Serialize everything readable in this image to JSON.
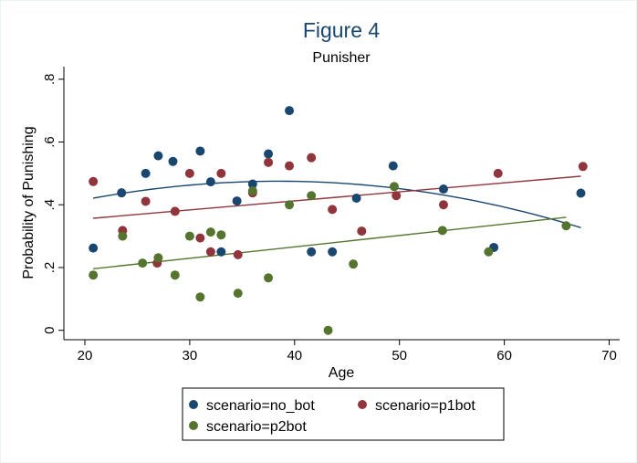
{
  "chart_data": {
    "type": "scatter",
    "title": "Figure 4",
    "subtitle": "Punisher",
    "xlabel": "Age",
    "ylabel": "Probability of Punishing",
    "xlim": [
      18,
      71
    ],
    "ylim": [
      -0.03,
      0.84
    ],
    "x_ticks": [
      20,
      30,
      40,
      50,
      60,
      70
    ],
    "x_tick_labels": [
      "20",
      "30",
      "40",
      "50",
      "60",
      "70"
    ],
    "y_ticks": [
      0,
      0.2,
      0.4,
      0.6,
      0.8
    ],
    "y_tick_labels": [
      "0",
      ".2",
      ".4",
      ".6",
      ".8"
    ],
    "grid": false,
    "legend_position": "bottom",
    "series": [
      {
        "name": "scenario=no_bot",
        "color": "#1a476f",
        "points": [
          [
            20.8,
            0.262
          ],
          [
            23.5,
            0.438
          ],
          [
            25.8,
            0.5
          ],
          [
            27,
            0.556
          ],
          [
            28.4,
            0.538
          ],
          [
            31,
            0.571
          ],
          [
            32,
            0.473
          ],
          [
            33,
            0.25
          ],
          [
            34.5,
            0.412
          ],
          [
            36,
            0.466
          ],
          [
            37.5,
            0.562
          ],
          [
            39.5,
            0.7
          ],
          [
            41.6,
            0.25
          ],
          [
            43.6,
            0.25
          ],
          [
            45.9,
            0.421
          ],
          [
            49.4,
            0.524
          ],
          [
            54.2,
            0.45
          ],
          [
            59,
            0.264
          ],
          [
            67.3,
            0.437
          ]
        ],
        "fit": {
          "kind": "quadratic",
          "from": 20.8,
          "to": 67.3,
          "y_start": 0.421,
          "y_peak_x": 38.5,
          "y_peak": 0.475,
          "y_end": 0.327
        }
      },
      {
        "name": "scenario=p1bot",
        "color": "#90353b",
        "points": [
          [
            20.8,
            0.474
          ],
          [
            23.6,
            0.318
          ],
          [
            25.8,
            0.411
          ],
          [
            26.9,
            0.214
          ],
          [
            28.6,
            0.379
          ],
          [
            30,
            0.5
          ],
          [
            31,
            0.294
          ],
          [
            32,
            0.25
          ],
          [
            33,
            0.5
          ],
          [
            34.6,
            0.241
          ],
          [
            36,
            0.438
          ],
          [
            37.5,
            0.535
          ],
          [
            39.5,
            0.524
          ],
          [
            41.6,
            0.55
          ],
          [
            43.6,
            0.385
          ],
          [
            46.4,
            0.316
          ],
          [
            49.7,
            0.429
          ],
          [
            54.2,
            0.4
          ],
          [
            59.4,
            0.5
          ],
          [
            67.5,
            0.522
          ]
        ],
        "fit": {
          "kind": "linear",
          "from": 20.8,
          "to": 67.3,
          "y_start": 0.357,
          "y_end": 0.491
        }
      },
      {
        "name": "scenario=p2bot",
        "color": "#55752f",
        "points": [
          [
            20.8,
            0.176
          ],
          [
            23.6,
            0.3
          ],
          [
            25.5,
            0.214
          ],
          [
            27,
            0.231
          ],
          [
            28.6,
            0.176
          ],
          [
            30,
            0.3
          ],
          [
            31,
            0.106
          ],
          [
            32,
            0.313
          ],
          [
            33,
            0.304
          ],
          [
            34.6,
            0.118
          ],
          [
            36,
            0.444
          ],
          [
            37.5,
            0.167
          ],
          [
            39.5,
            0.4
          ],
          [
            41.6,
            0.429
          ],
          [
            43.2,
            0
          ],
          [
            45.6,
            0.211
          ],
          [
            49.5,
            0.458
          ],
          [
            54.1,
            0.318
          ],
          [
            58.5,
            0.25
          ],
          [
            65.9,
            0.333
          ]
        ],
        "fit": {
          "kind": "linear",
          "from": 20.8,
          "to": 65.9,
          "y_start": 0.196,
          "y_end": 0.36
        }
      }
    ]
  }
}
